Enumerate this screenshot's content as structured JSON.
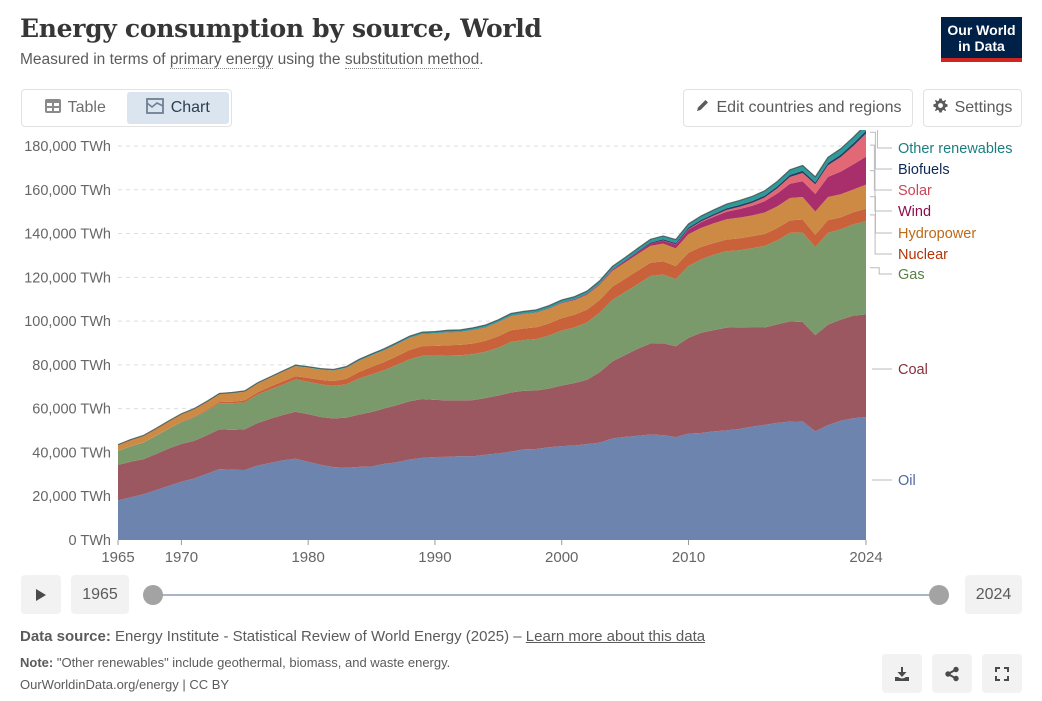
{
  "header": {
    "title": "Energy consumption by source, World",
    "subtitle_parts": [
      "Measured in terms of ",
      "primary energy",
      " using the ",
      "substitution method",
      "."
    ],
    "logo_line1": "Our World",
    "logo_line2": "in Data"
  },
  "tabs": [
    {
      "label": "Table",
      "icon": "table-icon",
      "active": false
    },
    {
      "label": "Chart",
      "icon": "chart-icon",
      "active": true
    }
  ],
  "toolbar": {
    "edit_label": "Edit countries and regions",
    "settings_label": "Settings"
  },
  "timeline": {
    "start_year": "1965",
    "end_year": "2024"
  },
  "footer": {
    "source_label": "Data source:",
    "source_text": "Energy Institute - Statistical Review of World Energy (2025) – ",
    "learn_more": "Learn more about this data",
    "note_label": "Note:",
    "note_text": "\"Other renewables\" include geothermal, biomass, and waste energy.",
    "license": "OurWorldinData.org/energy | CC BY"
  },
  "colors": {
    "Oil": "#6d84ae",
    "Coal": "#9c5860",
    "Gas": "#7a9a6b",
    "Nuclear": "#c9613a",
    "Hydropower": "#cc8a45",
    "Wind": "#a82e6c",
    "Solar": "#e26875",
    "Biofuels": "#2a3e63",
    "Other renewables": "#2e9b9b"
  },
  "label_colors": {
    "Oil": "#4c6a9c",
    "Coal": "#883039",
    "Gas": "#578145",
    "Nuclear": "#b13507",
    "Hydropower": "#bc6a18",
    "Wind": "#8c0c4c",
    "Solar": "#c8475a",
    "Biofuels": "#0c2a55",
    "Other renewables": "#1a7f80"
  },
  "chart_data": {
    "type": "area",
    "stacked": true,
    "title": "Energy consumption by source, World",
    "unit": "TWh",
    "ylim": [
      0,
      180000
    ],
    "yticks": [
      0,
      20000,
      40000,
      60000,
      80000,
      100000,
      120000,
      140000,
      160000,
      180000
    ],
    "ytick_labels": [
      "0 TWh",
      "20,000 TWh",
      "40,000 TWh",
      "60,000 TWh",
      "80,000 TWh",
      "100,000 TWh",
      "120,000 TWh",
      "140,000 TWh",
      "160,000 TWh",
      "180,000 TWh"
    ],
    "xticks": [
      1965,
      1970,
      1980,
      1990,
      2000,
      2010,
      2024
    ],
    "xlim": [
      1965,
      2024
    ],
    "grid": "horizontal-dashed",
    "legend": "right",
    "x": [
      1965,
      1966,
      1967,
      1968,
      1969,
      1970,
      1971,
      1972,
      1973,
      1974,
      1975,
      1976,
      1977,
      1978,
      1979,
      1980,
      1981,
      1982,
      1983,
      1984,
      1985,
      1986,
      1987,
      1988,
      1989,
      1990,
      1991,
      1992,
      1993,
      1994,
      1995,
      1996,
      1997,
      1998,
      1999,
      2000,
      2001,
      2002,
      2003,
      2004,
      2005,
      2006,
      2007,
      2008,
      2009,
      2010,
      2011,
      2012,
      2013,
      2014,
      2015,
      2016,
      2017,
      2018,
      2019,
      2020,
      2021,
      2022,
      2023,
      2024
    ],
    "series": [
      {
        "name": "Oil",
        "values": [
          18100,
          19500,
          20900,
          22800,
          24700,
          26600,
          28100,
          30200,
          32400,
          32100,
          32000,
          34000,
          35200,
          36400,
          37100,
          35700,
          34300,
          33300,
          33000,
          33400,
          33600,
          34800,
          35500,
          36800,
          37500,
          37900,
          38000,
          38300,
          38200,
          39000,
          39500,
          40400,
          41400,
          41600,
          42400,
          42900,
          43200,
          43800,
          44500,
          46400,
          47100,
          47600,
          48200,
          47900,
          47000,
          48600,
          48900,
          49600,
          50100,
          50700,
          51800,
          52600,
          53500,
          54100,
          54200,
          49600,
          52500,
          54500,
          55600,
          56200
        ]
      },
      {
        "name": "Coal",
        "values": [
          16200,
          16300,
          16000,
          16500,
          17100,
          17300,
          17200,
          17600,
          18200,
          18200,
          18600,
          19400,
          20200,
          20700,
          21500,
          21800,
          21900,
          22200,
          22900,
          23900,
          24900,
          25300,
          26100,
          26600,
          26900,
          26100,
          25800,
          25500,
          25700,
          25900,
          26500,
          27000,
          26800,
          26700,
          26800,
          27700,
          28500,
          29400,
          32200,
          35200,
          37400,
          39800,
          41600,
          42000,
          41500,
          43800,
          45800,
          46300,
          46900,
          46500,
          45300,
          44500,
          45000,
          45800,
          45400,
          44000,
          45900,
          46200,
          46900,
          46900
        ]
      },
      {
        "name": "Gas",
        "values": [
          6400,
          7000,
          7600,
          8300,
          9000,
          10000,
          10700,
          11300,
          11900,
          12200,
          12300,
          13000,
          13400,
          13900,
          14700,
          14800,
          14900,
          14900,
          15200,
          16400,
          17100,
          17500,
          18400,
          19100,
          19800,
          20100,
          20500,
          20600,
          21000,
          21100,
          21900,
          23100,
          23100,
          23500,
          24200,
          25100,
          25400,
          26200,
          27200,
          28100,
          28800,
          29500,
          30800,
          31400,
          30700,
          32800,
          33500,
          34500,
          34900,
          35200,
          36200,
          37200,
          38400,
          40400,
          40900,
          40200,
          41900,
          41200,
          41700,
          42600
        ]
      },
      {
        "name": "Nuclear",
        "values": [
          70,
          100,
          120,
          160,
          180,
          230,
          300,
          400,
          560,
          680,
          900,
          1050,
          1260,
          1450,
          1580,
          1790,
          2050,
          2200,
          2540,
          3000,
          3480,
          3730,
          4030,
          4290,
          4370,
          4530,
          4700,
          4750,
          4890,
          5010,
          5170,
          5350,
          5300,
          5400,
          5590,
          5690,
          5810,
          5850,
          5810,
          6060,
          6080,
          6170,
          6070,
          6000,
          5920,
          6040,
          5720,
          5290,
          5310,
          5400,
          5450,
          5520,
          5620,
          5730,
          5900,
          5650,
          5830,
          5480,
          5530,
          5640
        ]
      },
      {
        "name": "Hydropower",
        "values": [
          2600,
          2800,
          2900,
          3000,
          3200,
          3300,
          3450,
          3550,
          3600,
          3900,
          4000,
          4000,
          4100,
          4400,
          4600,
          4650,
          4700,
          4800,
          5000,
          5150,
          5250,
          5350,
          5400,
          5550,
          5550,
          5700,
          5850,
          5850,
          6100,
          6150,
          6400,
          6450,
          6600,
          6650,
          6700,
          6800,
          6700,
          6800,
          6900,
          7200,
          7400,
          7600,
          7700,
          8100,
          8100,
          8500,
          8700,
          9000,
          9300,
          9500,
          9500,
          9800,
          9900,
          10200,
          10300,
          10600,
          10600,
          10600,
          10400,
          11000
        ]
      },
      {
        "name": "Wind",
        "values": [
          0,
          0,
          0,
          0,
          0,
          0,
          0,
          0,
          0,
          0,
          0,
          0,
          0,
          0,
          0,
          0,
          0,
          0,
          0,
          0,
          0,
          0,
          0,
          10,
          20,
          20,
          30,
          30,
          40,
          50,
          60,
          70,
          90,
          110,
          150,
          200,
          250,
          330,
          420,
          530,
          660,
          830,
          1060,
          1370,
          1720,
          2120,
          2600,
          3000,
          3450,
          3870,
          4380,
          5120,
          5850,
          6520,
          7220,
          8000,
          9150,
          10300,
          11460,
          12800
        ]
      },
      {
        "name": "Solar",
        "values": [
          0,
          0,
          0,
          0,
          0,
          0,
          0,
          0,
          0,
          0,
          0,
          0,
          0,
          0,
          0,
          0,
          0,
          0,
          0,
          0,
          0,
          0,
          0,
          0,
          0,
          0,
          0,
          0,
          0,
          0,
          0,
          0,
          0,
          0,
          0,
          0,
          0,
          0,
          10,
          10,
          20,
          30,
          40,
          70,
          110,
          190,
          360,
          560,
          790,
          1040,
          1330,
          1720,
          2370,
          3070,
          3720,
          4420,
          5320,
          6630,
          8410,
          10500
        ]
      },
      {
        "name": "Biofuels",
        "values": [
          0,
          0,
          0,
          0,
          0,
          0,
          0,
          0,
          0,
          0,
          0,
          0,
          0,
          0,
          10,
          30,
          40,
          60,
          80,
          90,
          90,
          100,
          100,
          90,
          100,
          100,
          110,
          110,
          120,
          130,
          130,
          140,
          140,
          140,
          150,
          160,
          170,
          190,
          220,
          250,
          290,
          350,
          440,
          550,
          620,
          700,
          720,
          730,
          790,
          850,
          880,
          890,
          920,
          980,
          1040,
          990,
          1060,
          1130,
          1250,
          1300
        ]
      },
      {
        "name": "Other renewables",
        "values": [
          200,
          210,
          220,
          230,
          240,
          250,
          260,
          280,
          300,
          320,
          330,
          340,
          360,
          380,
          400,
          420,
          430,
          460,
          500,
          550,
          590,
          620,
          660,
          700,
          740,
          780,
          820,
          850,
          890,
          930,
          960,
          1000,
          1030,
          1060,
          1090,
          1120,
          1130,
          1170,
          1210,
          1280,
          1340,
          1400,
          1450,
          1520,
          1600,
          1680,
          1760,
          1850,
          1930,
          2010,
          2090,
          2160,
          2250,
          2350,
          2450,
          2480,
          2600,
          2680,
          2770,
          2850
        ]
      }
    ]
  }
}
